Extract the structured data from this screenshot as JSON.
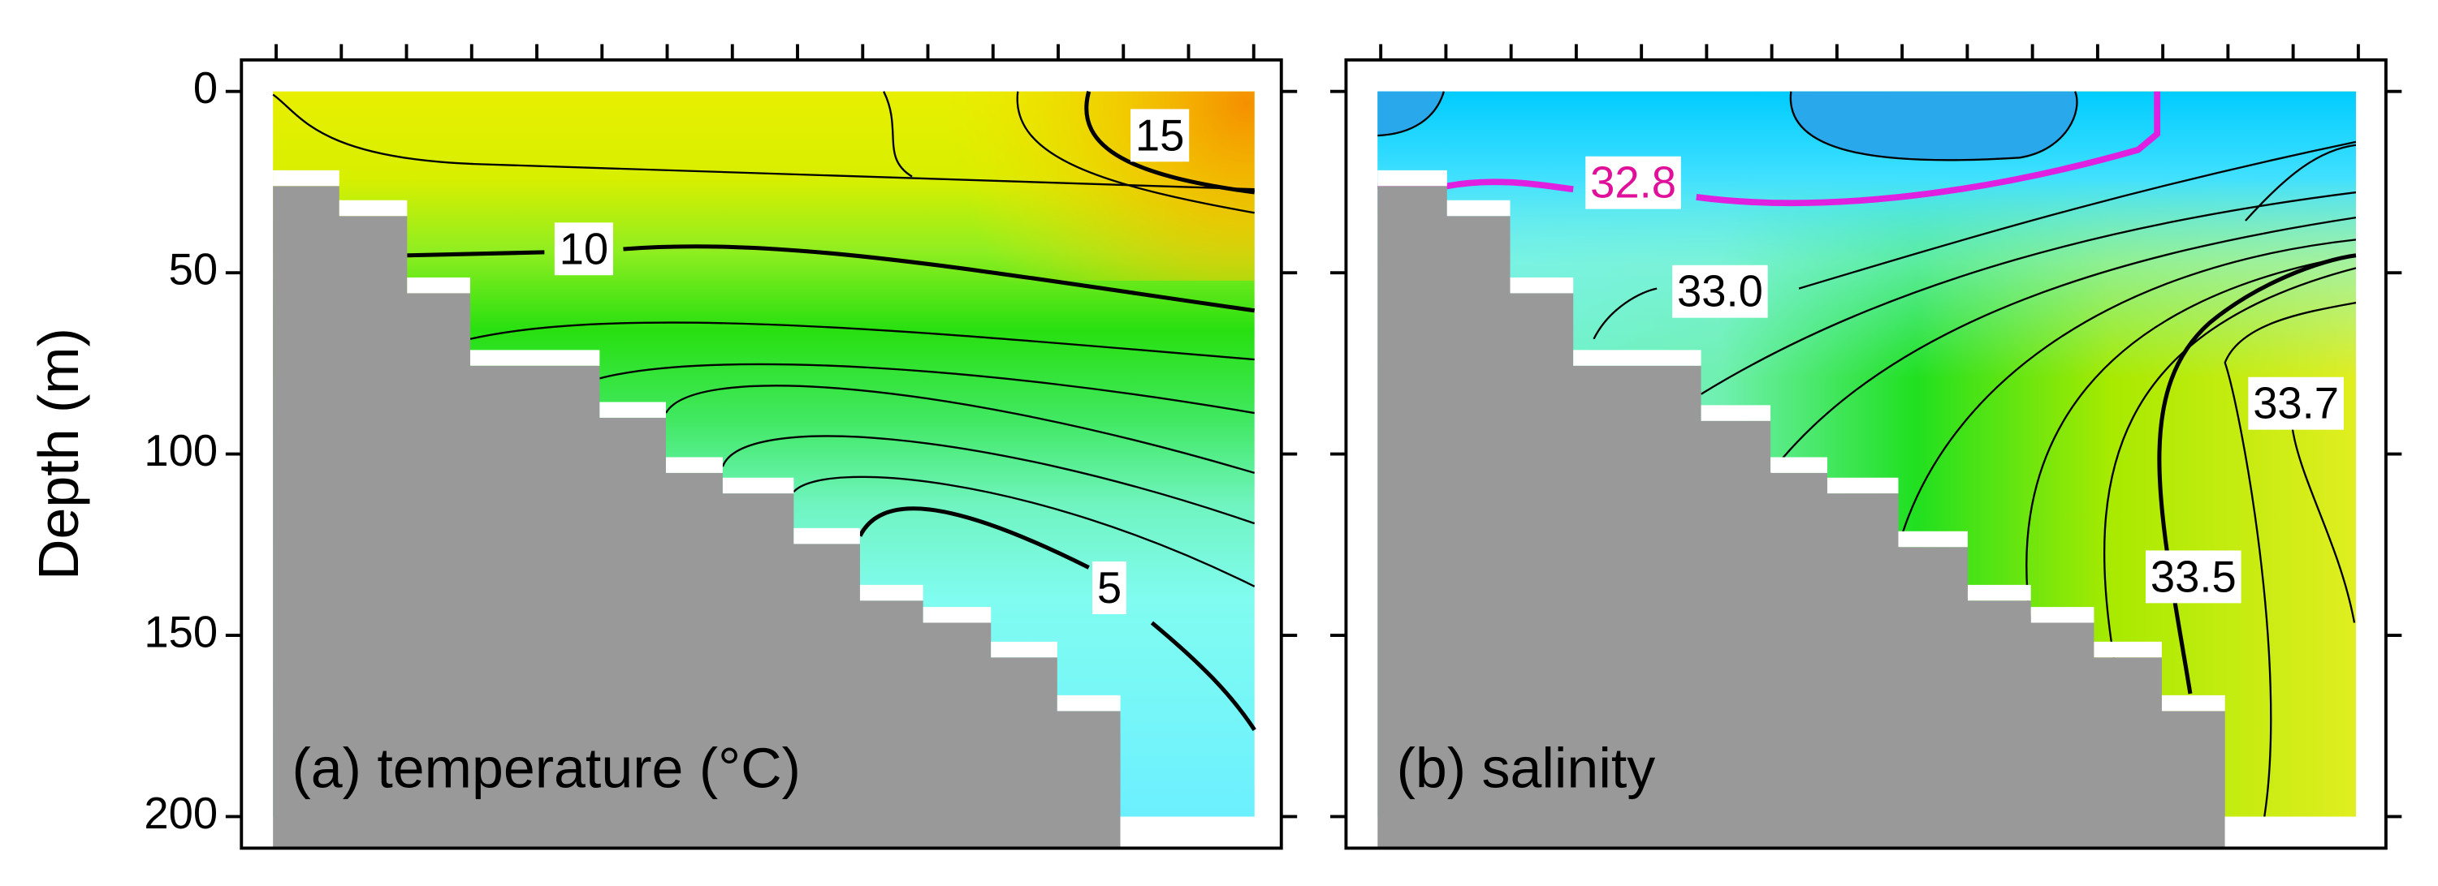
{
  "chart_data": [
    {
      "type": "contour",
      "title": "(a) temperature (°C)",
      "ylabel": "Depth (m)",
      "ylim": [
        -8.7,
        208.7
      ],
      "yticks": [
        0,
        50,
        100,
        150,
        200
      ],
      "y_inverted": true,
      "contour_labels": {
        "values": [
          15,
          10,
          5
        ],
        "colors": [
          "#000000",
          "#000000",
          "#000000"
        ]
      }
    },
    {
      "type": "contour",
      "title": "(b) salinity",
      "contour_labels": {
        "values": [
          32.8,
          33.0,
          33.5,
          33.7
        ],
        "value_labels": [
          "32.8",
          "33.0",
          "33.5",
          "33.7"
        ],
        "colors": [
          "#e0109a",
          "#000000",
          "#000000",
          "#000000"
        ]
      }
    }
  ]
}
